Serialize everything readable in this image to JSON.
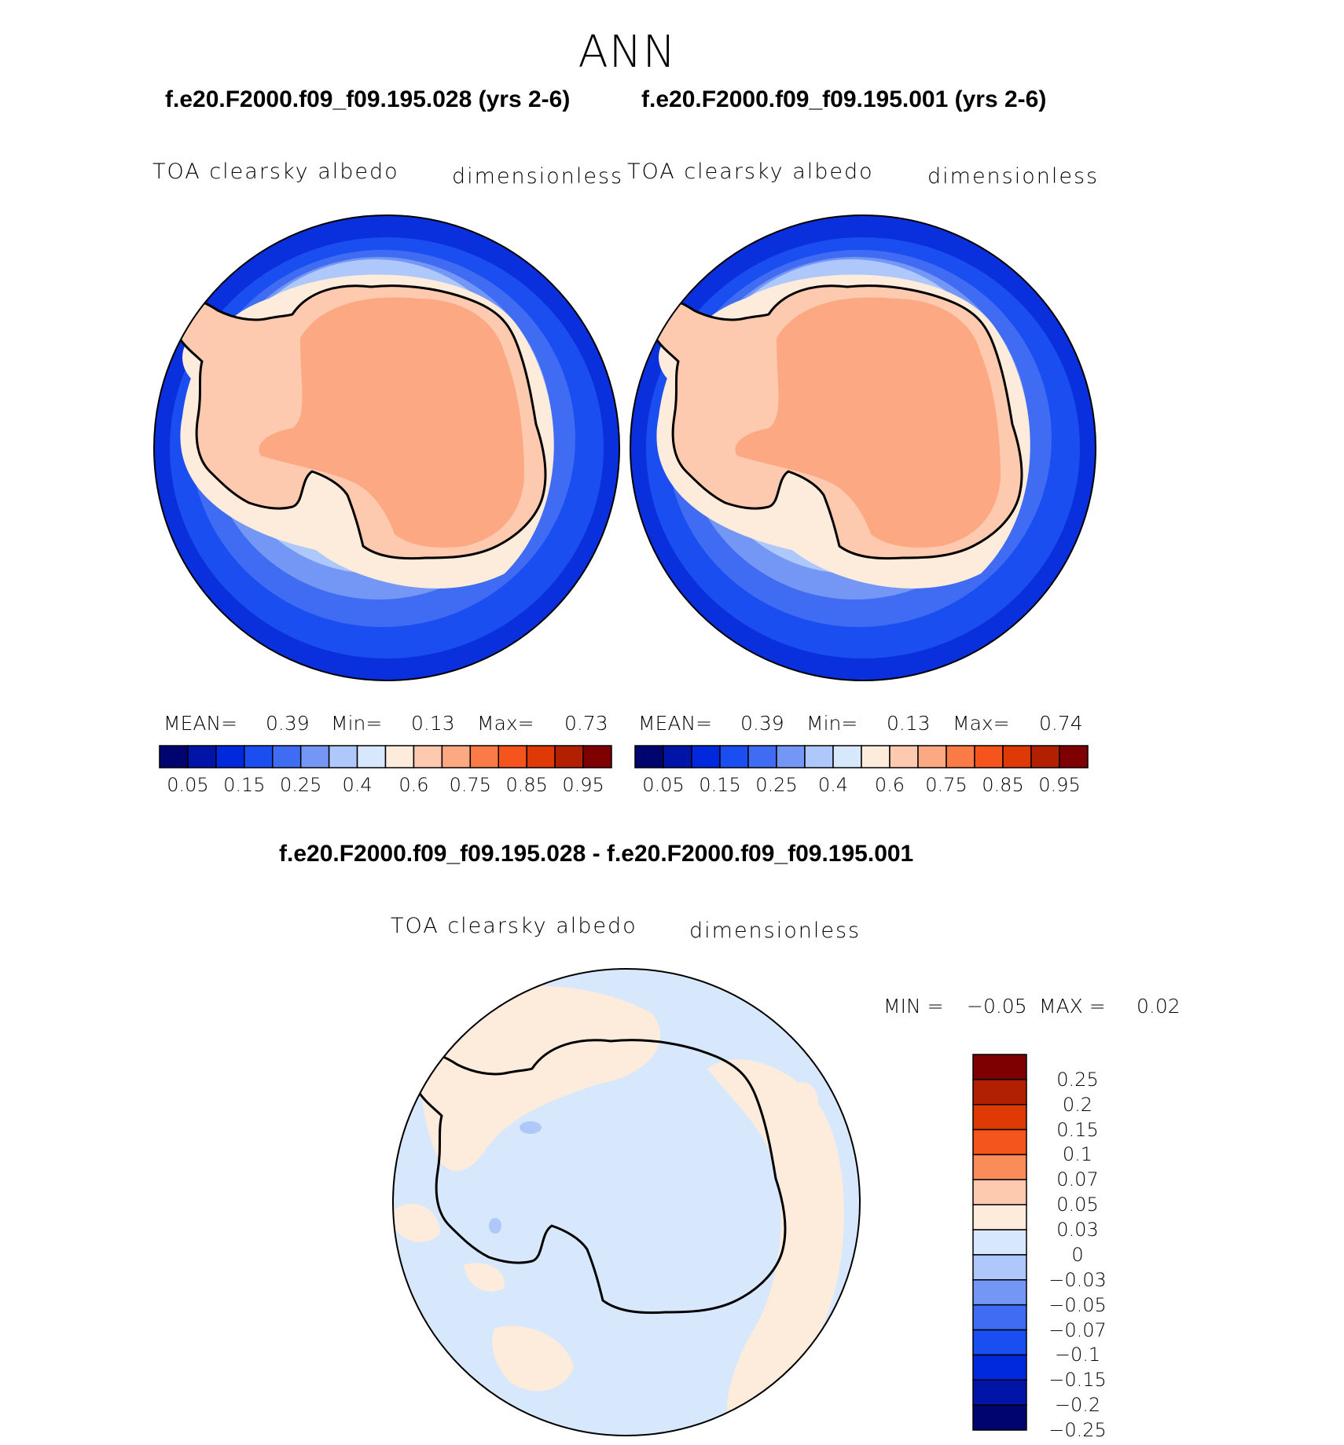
{
  "season": "ANN",
  "abs_colors": [
    "#00046e",
    "#0014a8",
    "#0028dc",
    "#1a4ef0",
    "#3f6cf2",
    "#7497f6",
    "#aec8fb",
    "#d8e8fc",
    "#fdebdc",
    "#fdcab0",
    "#fca983",
    "#fa7b45",
    "#f5541d",
    "#df3a06",
    "#b21f01",
    "#7e0000"
  ],
  "abs_ticks": [
    "0.05",
    "0.15",
    "0.25",
    "0.4",
    "0.6",
    "0.75",
    "0.85",
    "0.95"
  ],
  "diff_colors": [
    "#00046e",
    "#0014a8",
    "#0028dc",
    "#1a4ef0",
    "#3f6cf2",
    "#7497f6",
    "#aec8fb",
    "#d8e8fc",
    "#fdebdc",
    "#fdcab0",
    "#fa8c5a",
    "#f5541d",
    "#df3a06",
    "#b21f01",
    "#7e0000"
  ],
  "diff_ticks": [
    "0.25",
    "0.2",
    "0.15",
    "0.1",
    "0.07",
    "0.05",
    "0.03",
    "0",
    "−0.03",
    "−0.05",
    "−0.07",
    "−0.1",
    "−0.15",
    "−0.2",
    "−0.25"
  ],
  "panels": [
    {
      "case_title": "f.e20.F2000.f09_f09.195.028 (yrs 2-6)",
      "variable": "TOA clearsky albedo",
      "units": "dimensionless",
      "mean_label": "MEAN=",
      "mean_value": "0.39",
      "min_label": "Min=",
      "min_value": "0.13",
      "max_label": "Max=",
      "max_value": "0.73"
    },
    {
      "case_title": "f.e20.F2000.f09_f09.195.001 (yrs 2-6)",
      "variable": "TOA clearsky albedo",
      "units": "dimensionless",
      "mean_label": "MEAN=",
      "mean_value": "0.39",
      "min_label": "Min=",
      "min_value": "0.13",
      "max_label": "Max=",
      "max_value": "0.74"
    }
  ],
  "difference": {
    "title": "f.e20.F2000.f09_f09.195.028 - f.e20.F2000.f09_f09.195.001",
    "variable": "TOA clearsky albedo",
    "units": "dimensionless",
    "min_label": "MIN =",
    "min_value": "−0.05",
    "max_label": "MAX =",
    "max_value": "0.02"
  }
}
